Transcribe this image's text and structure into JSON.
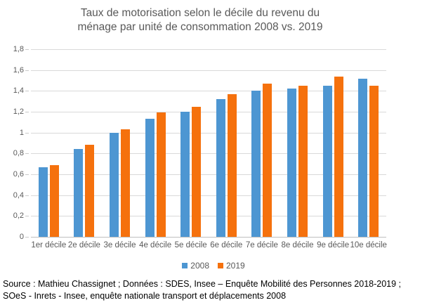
{
  "title": {
    "lines": [
      "Taux de motorisation selon le décile du revenu du",
      "ménage par unité de consommation 2008 vs. 2019"
    ]
  },
  "chart_data": {
    "type": "bar",
    "title": "Taux de motorisation selon le décile du revenu du ménage par unité de consommation 2008 vs. 2019",
    "categories": [
      "1er décile",
      "2e décile",
      "3e décile",
      "4e décile",
      "5e décile",
      "6e décile",
      "7e décile",
      "8e décile",
      "9e décile",
      "10e décile"
    ],
    "series": [
      {
        "name": "2008",
        "color": "#4D96D2",
        "values": [
          0.67,
          0.84,
          1.0,
          1.13,
          1.2,
          1.32,
          1.4,
          1.42,
          1.45,
          1.52
        ]
      },
      {
        "name": "2019",
        "color": "#F5710D",
        "values": [
          0.69,
          0.88,
          1.03,
          1.19,
          1.25,
          1.37,
          1.47,
          1.45,
          1.54,
          1.45
        ]
      }
    ],
    "xlabel": "",
    "ylabel": "",
    "ylim": [
      0,
      1.8
    ],
    "yticks": [
      {
        "value": 0,
        "label": "0"
      },
      {
        "value": 0.2,
        "label": "0,2"
      },
      {
        "value": 0.4,
        "label": "0,4"
      },
      {
        "value": 0.6,
        "label": "0,6"
      },
      {
        "value": 0.8,
        "label": "0,8"
      },
      {
        "value": 1,
        "label": "1"
      },
      {
        "value": 1.2,
        "label": "1,2"
      },
      {
        "value": 1.4,
        "label": "1,4"
      },
      {
        "value": 1.6,
        "label": "1,6"
      },
      {
        "value": 1.8,
        "label": "1,8"
      }
    ],
    "grid": true,
    "legend_position": "bottom"
  },
  "source": {
    "lines": [
      "Source : Mathieu Chassignet ; Données : SDES, Insee – Enquête Mobilité des Personnes 2018-2019 ;",
      "SOeS - Inrets - Insee, enquête nationale transport et déplacements 2008"
    ]
  },
  "colors": {
    "series_2008": "#4D96D2",
    "series_2019": "#F5710D",
    "gridline": "#D9D9D9",
    "axis_line": "#BFBFBF",
    "title_text": "#595959",
    "tick_text": "#595959",
    "source_text": "#000000",
    "background": "#FFFFFF"
  }
}
